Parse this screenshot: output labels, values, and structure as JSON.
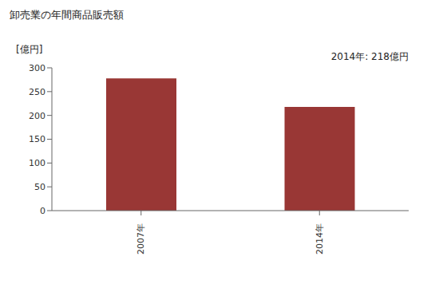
{
  "chart_data": {
    "type": "bar",
    "title": "卸売業の年間商品販売額",
    "ylabel": "[億円]",
    "annotation": "2014年: 218億円",
    "categories": [
      "2007年",
      "2014年"
    ],
    "values": [
      278,
      218
    ],
    "color": "#993735",
    "ylim": [
      0,
      300
    ],
    "yticks": [
      0,
      50,
      100,
      150,
      200,
      250,
      300
    ],
    "grid": false
  }
}
